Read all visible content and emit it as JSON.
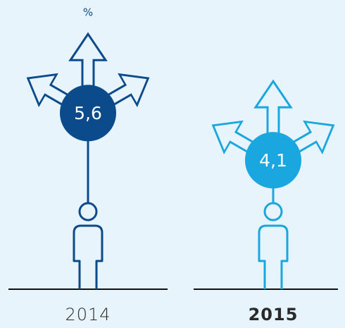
{
  "chart_data": {
    "type": "pictogram",
    "unit": "%",
    "categories": [
      "2014",
      "2015"
    ],
    "values": [
      5.6,
      4.1
    ],
    "value_labels": [
      "5,6",
      "4,1"
    ],
    "colors": [
      "#0b4a8b",
      "#1aa6df"
    ]
  }
}
